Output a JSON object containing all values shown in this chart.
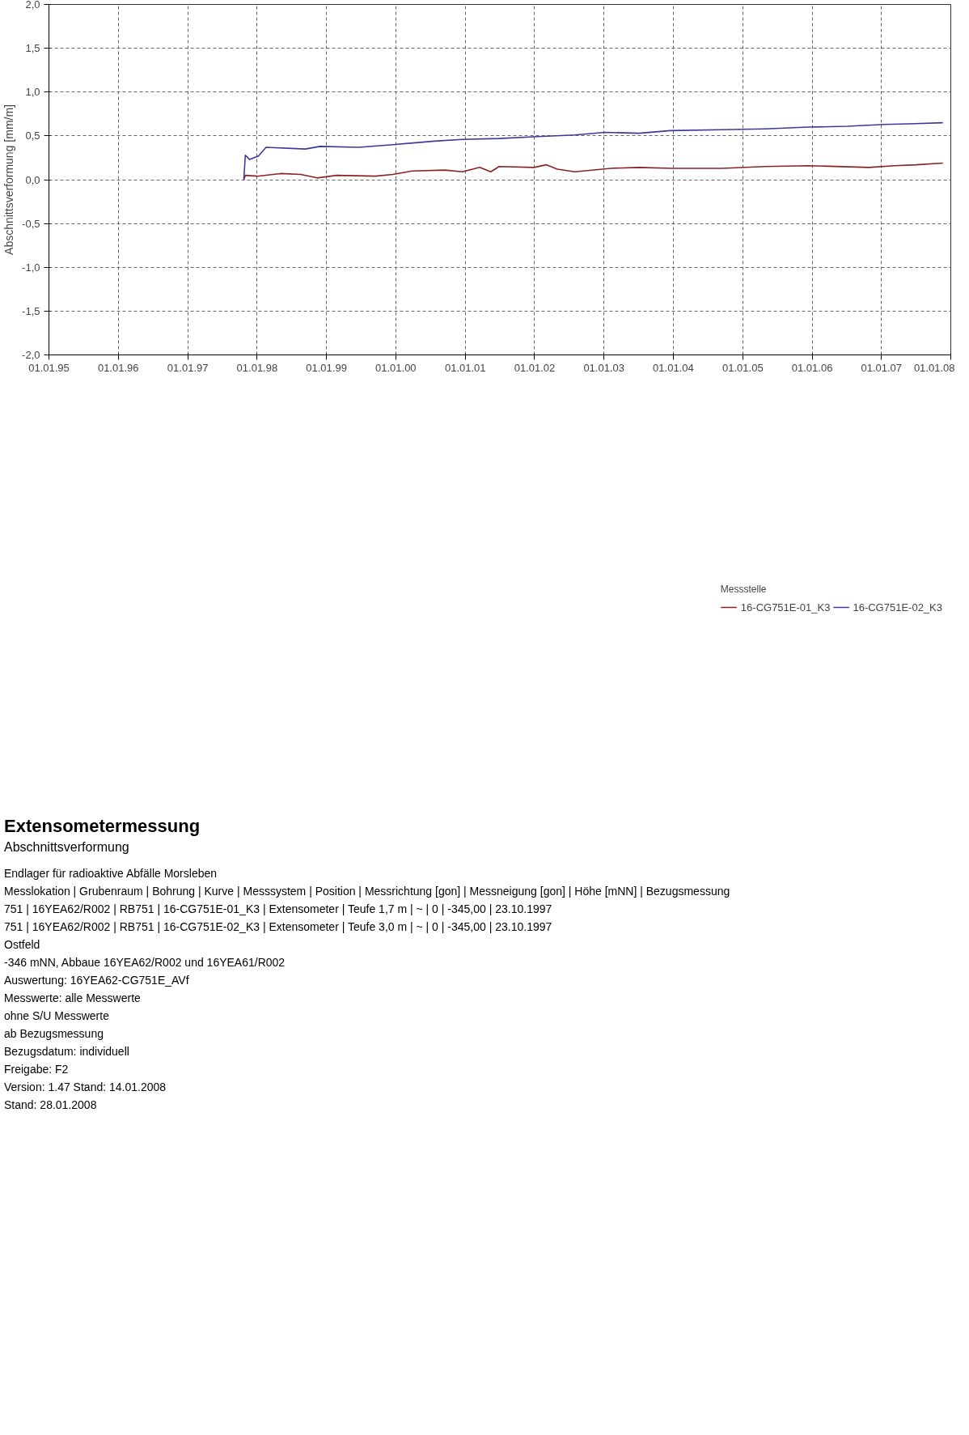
{
  "chart_data": {
    "type": "line",
    "title": "Extensometermessung",
    "subtitle": "Abschnittsverformung",
    "ylabel": "Abschnittsverformung [mm/m]",
    "legend_title": "Messstelle",
    "xlim": [
      "1995-01-01",
      "2008-01-01"
    ],
    "xticks": [
      {
        "value": "1995-01-01",
        "label": "01.01.95"
      },
      {
        "value": "1996-01-01",
        "label": "01.01.96"
      },
      {
        "value": "1997-01-01",
        "label": "01.01.97"
      },
      {
        "value": "1998-01-01",
        "label": "01.01.98"
      },
      {
        "value": "1999-01-01",
        "label": "01.01.99"
      },
      {
        "value": "2000-01-01",
        "label": "01.01.00"
      },
      {
        "value": "2001-01-01",
        "label": "01.01.01"
      },
      {
        "value": "2002-01-01",
        "label": "01.01.02"
      },
      {
        "value": "2003-01-01",
        "label": "01.01.03"
      },
      {
        "value": "2004-01-01",
        "label": "01.01.04"
      },
      {
        "value": "2005-01-01",
        "label": "01.01.05"
      },
      {
        "value": "2006-01-01",
        "label": "01.01.06"
      },
      {
        "value": "2007-01-01",
        "label": "01.01.07"
      },
      {
        "value": "2008-01-01",
        "label": "01.01.08"
      }
    ],
    "ylim": [
      -2,
      2
    ],
    "yticks": [
      {
        "value": -2,
        "label": "-2,0"
      },
      {
        "value": -1.5,
        "label": "-1,5"
      },
      {
        "value": -1,
        "label": "-1,0"
      },
      {
        "value": -0.5,
        "label": "-0,5"
      },
      {
        "value": 0,
        "label": "0,0"
      },
      {
        "value": 0.5,
        "label": "0,5"
      },
      {
        "value": 1,
        "label": "1,0"
      },
      {
        "value": 1.5,
        "label": "1,5"
      },
      {
        "value": 2,
        "label": "2,0"
      }
    ],
    "grid": true,
    "legend": "bottom",
    "line_style": "solid",
    "marker": "none",
    "series": [
      {
        "name": "16-CG751E-01_K3",
        "color": "#8b2323",
        "x": [
          "1997-10-23",
          "1997-10-31",
          "1998-01-01",
          "1998-05-04",
          "1998-08-18",
          "1998-11-13",
          "1999-02-24",
          "1999-09-16",
          "1999-12-17",
          "2000-03-28",
          "2000-09-16",
          "2000-12-16",
          "2001-03-18",
          "2001-05-15",
          "2001-06-28",
          "2001-12-28",
          "2002-03-03",
          "2002-04-30",
          "2002-07-31",
          "2003-02-07",
          "2003-07-05",
          "2003-12-24",
          "2004-09-13",
          "2005-04-27",
          "2005-12-13",
          "2006-10-27",
          "2007-03-10",
          "2007-07-01",
          "2007-11-20"
        ],
        "values": [
          0,
          0.05,
          0.04,
          0.07,
          0.06,
          0.02,
          0.05,
          0.04,
          0.06,
          0.1,
          0.11,
          0.09,
          0.14,
          0.09,
          0.15,
          0.14,
          0.17,
          0.12,
          0.09,
          0.13,
          0.14,
          0.13,
          0.13,
          0.15,
          0.16,
          0.14,
          0.16,
          0.17,
          0.19
        ]
      },
      {
        "name": "16-CG751E-02_K3",
        "color": "#3a3a9c",
        "x": [
          "1997-10-23",
          "1997-10-31",
          "1997-11-22",
          "1998-01-08",
          "1998-02-17",
          "1998-09-12",
          "1998-11-28",
          "1999-06-21",
          "1999-12-17",
          "2000-07-23",
          "2000-12-16",
          "2001-06-28",
          "2001-12-28",
          "2002-07-31",
          "2003-01-08",
          "2003-07-05",
          "2003-12-16",
          "2004-09-13",
          "2005-04-27",
          "2005-12-13",
          "2006-07-05",
          "2007-01-15",
          "2007-07-01",
          "2007-11-20"
        ],
        "values": [
          0,
          0.28,
          0.23,
          0.27,
          0.37,
          0.35,
          0.38,
          0.37,
          0.4,
          0.44,
          0.46,
          0.47,
          0.49,
          0.51,
          0.54,
          0.53,
          0.56,
          0.57,
          0.58,
          0.6,
          0.61,
          0.63,
          0.64,
          0.65
        ]
      }
    ],
    "annotations": [
      "Endlager für radioaktive Abfälle Morsleben",
      "Messlokation | Grubenraum | Bohrung | Kurve | Messsystem | Position | Messrichtung [gon] | Messneigung [gon] | Höhe [mNN] | Bezugsmessung",
      "751 | 16YEA62/R002 | RB751 | 16-CG751E-01_K3 | Extensometer | Teufe 1,7 m | ~ | 0 | -345,00 | 23.10.1997",
      "751 | 16YEA62/R002 | RB751 | 16-CG751E-02_K3 | Extensometer | Teufe 3,0 m | ~ | 0 | -345,00 | 23.10.1997",
      "Ostfeld",
      "-346 mNN, Abbaue 16YEA62/R002 und 16YEA61/R002",
      "Auswertung: 16YEA62-CG751E_AVf",
      "Messwerte: alle Messwerte",
      "ohne S/U Messwerte",
      "ab Bezugsmessung",
      "Bezugsdatum: individuell",
      "Freigabe: F2",
      "Version: 1.47   Stand: 14.01.2008",
      "Stand: 28.01.2008"
    ]
  }
}
